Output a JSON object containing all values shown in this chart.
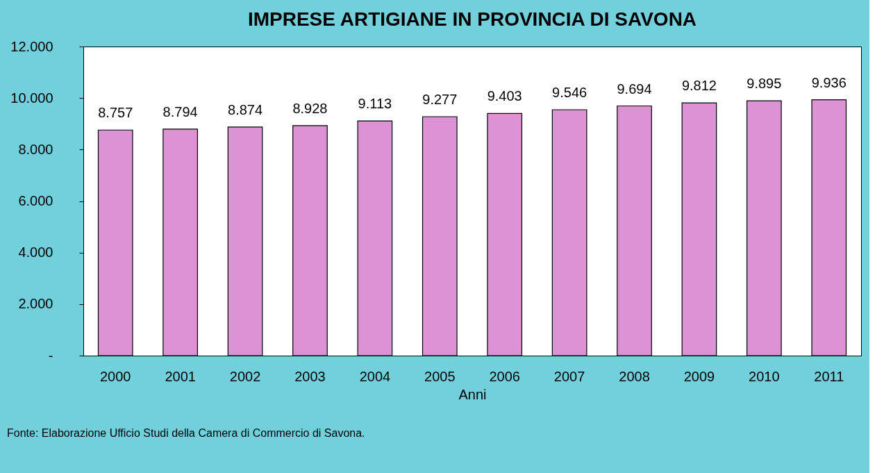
{
  "chart_data": {
    "type": "bar",
    "title": "IMPRESE ARTIGIANE IN PROVINCIA DI SAVONA",
    "xlabel": "Anni",
    "categories": [
      "2000",
      "2001",
      "2002",
      "2003",
      "2004",
      "2005",
      "2006",
      "2007",
      "2008",
      "2009",
      "2010",
      "2011"
    ],
    "values": [
      8757,
      8794,
      8874,
      8928,
      9113,
      9277,
      9403,
      9546,
      9694,
      9812,
      9895,
      9936
    ],
    "value_labels": [
      "8.757",
      "8.794",
      "8.874",
      "8.928",
      "9.113",
      "9.277",
      "9.403",
      "9.546",
      "9.694",
      "9.812",
      "9.895",
      "9.936"
    ],
    "color": "#dc92d4",
    "ylim": [
      0,
      12000
    ],
    "yticks": [
      {
        "value": 0,
        "label": "-"
      },
      {
        "value": 2000,
        "label": "2.000"
      },
      {
        "value": 4000,
        "label": "4.000"
      },
      {
        "value": 6000,
        "label": "6.000"
      },
      {
        "value": 8000,
        "label": "8.000"
      },
      {
        "value": 10000,
        "label": "10.000"
      },
      {
        "value": 12000,
        "label": "12.000"
      }
    ],
    "grid": false,
    "annotations": [
      "Fonte: Elaborazione Ufficio Studi della Camera di Commercio di Savona."
    ]
  }
}
